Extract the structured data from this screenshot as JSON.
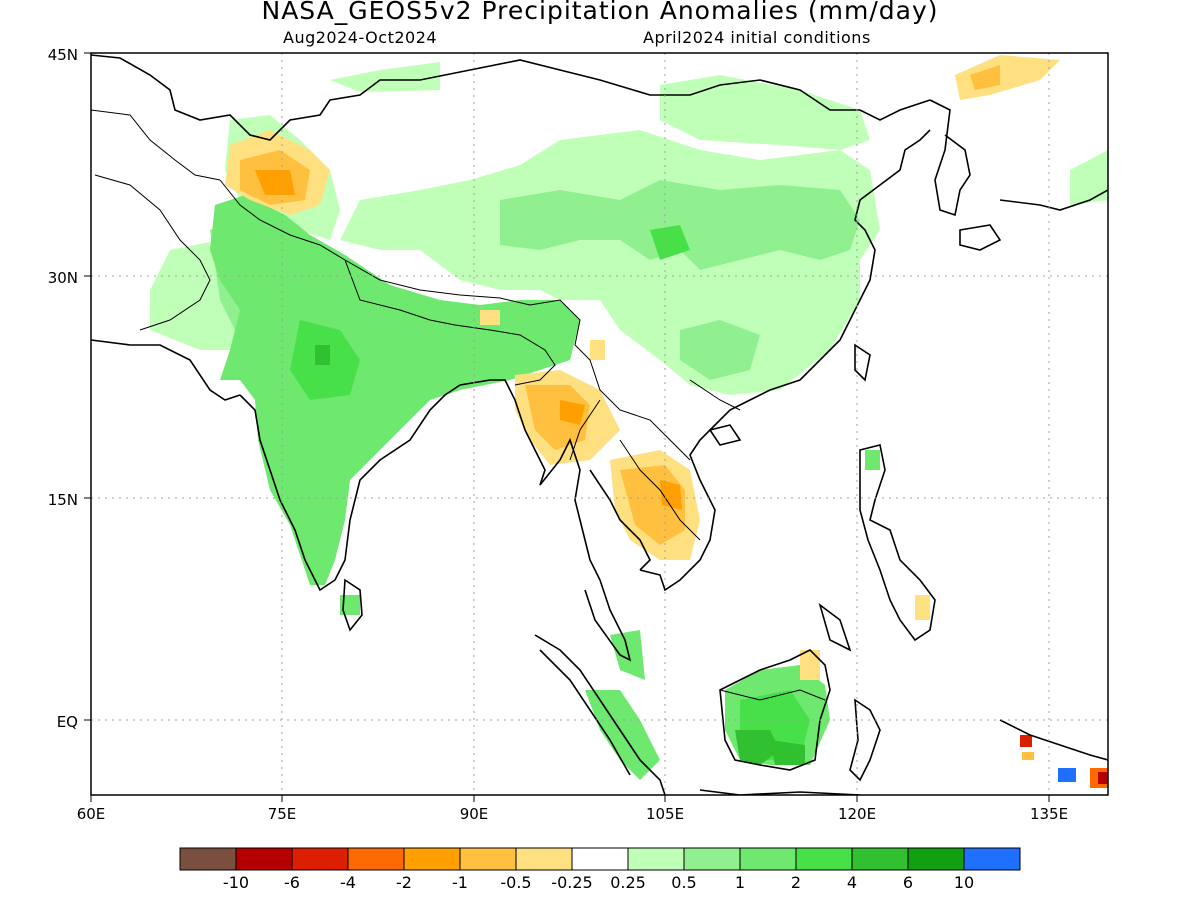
{
  "header": {
    "title": "NASA_GEOS5v2 Precipitation Anomalies (mm/day)",
    "period": "Aug2024-Oct2024",
    "init": "April2024 initial conditions"
  },
  "map": {
    "lon_range": [
      60,
      140
    ],
    "lat_range": [
      -5,
      45
    ],
    "x_ticks": [
      "60E",
      "75E",
      "90E",
      "105E",
      "120E",
      "135E"
    ],
    "y_ticks": [
      "45N",
      "30N",
      "15N",
      "EQ"
    ],
    "grid": "dotted"
  },
  "legend": {
    "labels": [
      "-10",
      "-6",
      "-4",
      "-2",
      "-1",
      "-0.5",
      "-0.25",
      "0.25",
      "0.5",
      "1",
      "2",
      "4",
      "6",
      "10"
    ],
    "colors": [
      "#7b4f3f",
      "#b50000",
      "#dc1f00",
      "#ff6a00",
      "#ff9f00",
      "#ffbf3f",
      "#ffe080",
      "#ffffff",
      "#c0ffb8",
      "#90f090",
      "#6ee86e",
      "#48e048",
      "#30c030",
      "#10a010",
      "#2070ff"
    ]
  }
}
